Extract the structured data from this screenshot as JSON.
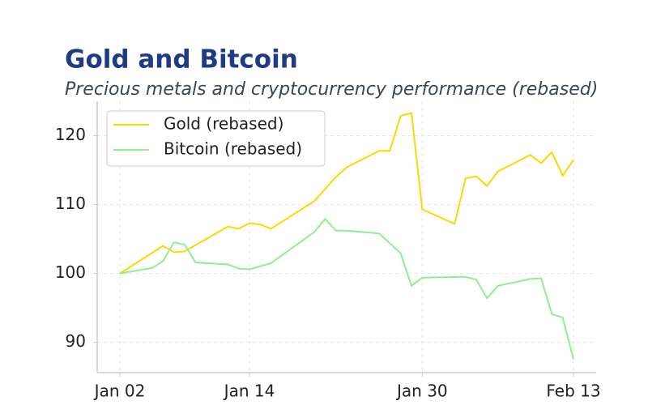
{
  "chart_data": {
    "type": "line",
    "title": "Gold and Bitcoin",
    "subtitle": "Precious metals and cryptocurrency performance (rebased)",
    "series": [
      {
        "name": "Gold (rebased)",
        "color": "#ffd700",
        "x": [
          "Jan 02",
          "Jan 06",
          "Jan 07",
          "Jan 08",
          "Jan 12",
          "Jan 13",
          "Jan 14",
          "Jan 15",
          "Jan 16",
          "Jan 20",
          "Jan 22",
          "Jan 23",
          "Jan 26",
          "Jan 27",
          "Jan 28",
          "Jan 29",
          "Jan 30",
          "Feb 02",
          "Feb 03",
          "Feb 04",
          "Feb 05",
          "Feb 06",
          "Feb 09",
          "Feb 10",
          "Feb 11",
          "Feb 12",
          "Feb 13"
        ],
        "values": [
          100,
          104.0,
          103.1,
          103.2,
          106.8,
          106.5,
          107.3,
          107.1,
          106.5,
          110.5,
          114.0,
          115.4,
          117.8,
          117.8,
          122.9,
          123.3,
          109.3,
          107.2,
          113.8,
          114.1,
          112.7,
          114.8,
          117.2,
          116.0,
          117.6,
          114.2,
          116.5
        ]
      },
      {
        "name": "Bitcoin (rebased)",
        "color": "#90ee90",
        "x": [
          "Jan 02",
          "Jan 05",
          "Jan 06",
          "Jan 07",
          "Jan 08",
          "Jan 09",
          "Jan 12",
          "Jan 13",
          "Jan 14",
          "Jan 16",
          "Jan 20",
          "Jan 21",
          "Jan 22",
          "Jan 23",
          "Jan 26",
          "Jan 27",
          "Jan 28",
          "Jan 29",
          "Jan 30",
          "Feb 03",
          "Feb 04",
          "Feb 05",
          "Feb 06",
          "Feb 09",
          "Feb 10",
          "Feb 11",
          "Feb 12",
          "Feb 13"
        ],
        "values": [
          100,
          100.8,
          101.8,
          104.5,
          104.2,
          101.6,
          101.3,
          100.7,
          100.6,
          101.5,
          106.0,
          107.9,
          106.2,
          106.2,
          105.8,
          104.4,
          102.9,
          98.2,
          99.4,
          99.5,
          99.1,
          96.4,
          98.2,
          99.2,
          99.3,
          94.1,
          93.6,
          87.5
        ]
      }
    ],
    "xticks": [
      "Jan 02",
      "Jan 14",
      "Jan 30",
      "Feb 13"
    ],
    "ylim": [
      85.6,
      125
    ],
    "yticks": [
      90,
      100,
      110,
      120
    ],
    "grid": true,
    "legend": "upper left"
  }
}
